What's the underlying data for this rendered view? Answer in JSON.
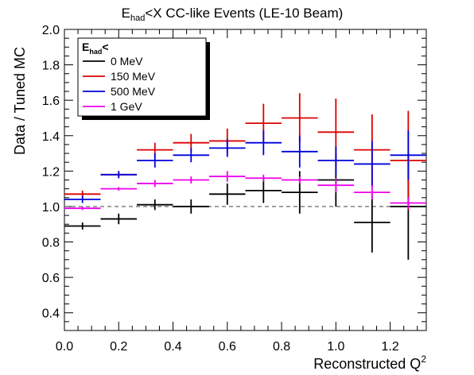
{
  "chart_data": {
    "type": "scatter",
    "title_main": "E",
    "title_sub": "had",
    "title_rest": "<X CC-like Events (LE-10 Beam)",
    "xlabel": "Reconstructed Q",
    "xlabel_sup": "2",
    "ylabel": "Data / Tuned MC",
    "xlim": [
      0.0,
      1.333
    ],
    "ylim": [
      0.3,
      2.0
    ],
    "x_ticks": [
      "0.0",
      "0.2",
      "0.4",
      "0.6",
      "0.8",
      "1.0",
      "1.2"
    ],
    "x_tick_values": [
      0.0,
      0.2,
      0.4,
      0.6,
      0.8,
      1.0,
      1.2
    ],
    "y_ticks": [
      "0.4",
      "0.6",
      "0.8",
      "1.0",
      "1.2",
      "1.4",
      "1.6",
      "1.8",
      "2.0"
    ],
    "y_tick_values": [
      0.4,
      0.6,
      0.8,
      1.0,
      1.2,
      1.4,
      1.6,
      1.8,
      2.0
    ],
    "reference_line": 1.0,
    "legend": {
      "title_main": "E",
      "title_sub": "had",
      "title_rest": "<",
      "placement": "top-left"
    },
    "bin_edges": [
      0.0,
      0.1333,
      0.2667,
      0.4,
      0.5333,
      0.6667,
      0.8,
      0.9333,
      1.0667,
      1.2,
      1.3333
    ],
    "series": [
      {
        "name": "0 MeV",
        "color": "#000000",
        "values": [
          0.89,
          0.93,
          1.01,
          1.0,
          1.07,
          1.09,
          1.08,
          1.15,
          0.91,
          1.0
        ],
        "errors": [
          0.02,
          0.03,
          0.03,
          0.04,
          0.06,
          0.07,
          0.12,
          0.15,
          0.17,
          0.3
        ]
      },
      {
        "name": "150 MeV",
        "color": "#dd0000",
        "values": [
          1.07,
          1.18,
          1.32,
          1.36,
          1.37,
          1.47,
          1.5,
          1.42,
          1.32,
          1.26
        ],
        "errors": [
          0.02,
          0.02,
          0.04,
          0.05,
          0.07,
          0.11,
          0.14,
          0.19,
          0.2,
          0.28
        ]
      },
      {
        "name": "500 MeV",
        "color": "#0000dd",
        "values": [
          1.04,
          1.18,
          1.26,
          1.29,
          1.33,
          1.36,
          1.31,
          1.26,
          1.24,
          1.29
        ],
        "errors": [
          0.02,
          0.02,
          0.04,
          0.04,
          0.05,
          0.07,
          0.09,
          0.08,
          0.13,
          0.14
        ]
      },
      {
        "name": "1 GeV",
        "color": "#ee00ee",
        "values": [
          0.99,
          1.1,
          1.13,
          1.15,
          1.17,
          1.16,
          1.15,
          1.12,
          1.08,
          1.02
        ],
        "errors": [
          0.01,
          0.01,
          0.02,
          0.02,
          0.03,
          0.02,
          0.02,
          0.04,
          0.04,
          0.03
        ]
      }
    ]
  }
}
